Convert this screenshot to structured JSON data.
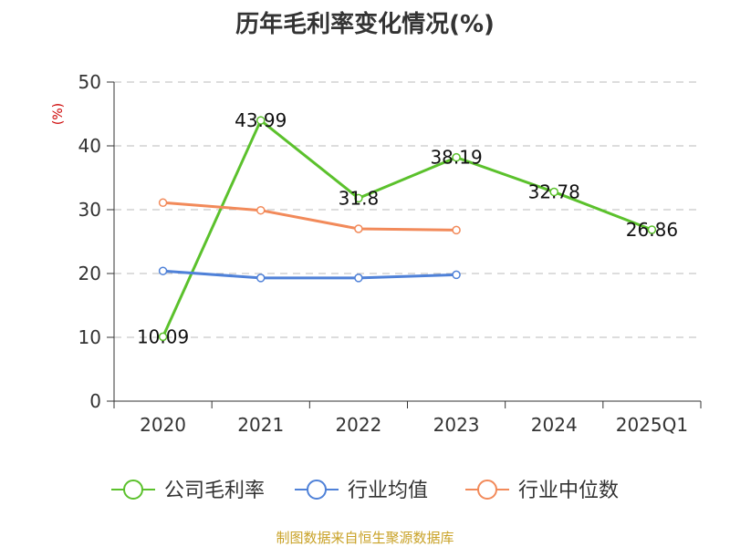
{
  "title": "历年毛利率变化情况(%)",
  "source": "制图数据来自恒生聚源数据库",
  "chart_data": {
    "type": "line",
    "title": "历年毛利率变化情况(%)",
    "ylabel": "(%)",
    "xlabel": "",
    "categories": [
      "2020",
      "2021",
      "2022",
      "2023",
      "2024",
      "2025Q1"
    ],
    "ylim": [
      0,
      50
    ],
    "yticks": [
      0,
      10,
      20,
      30,
      40,
      50
    ],
    "grid": true,
    "legend_position": "bottom",
    "series": [
      {
        "name": "公司毛利率",
        "color": "#5bc12c",
        "values": [
          10.09,
          43.99,
          31.8,
          38.19,
          32.78,
          26.86
        ],
        "labels": [
          "10.09",
          "43.99",
          "31.8",
          "38.19",
          "32.78",
          "26.86"
        ]
      },
      {
        "name": "行业均值",
        "color": "#4f81d8",
        "values": [
          20.4,
          19.3,
          19.3,
          19.8,
          null,
          null
        ]
      },
      {
        "name": "行业中位数",
        "color": "#f28a5a",
        "values": [
          31.1,
          29.9,
          27.0,
          26.8,
          null,
          null
        ]
      }
    ]
  }
}
